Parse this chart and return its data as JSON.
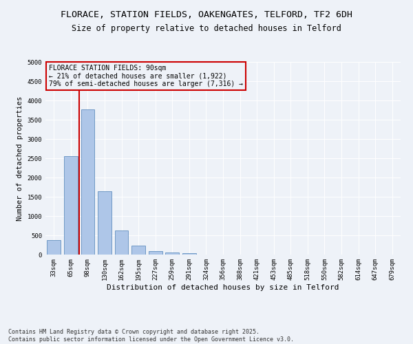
{
  "title_line1": "FLORACE, STATION FIELDS, OAKENGATES, TELFORD, TF2 6DH",
  "title_line2": "Size of property relative to detached houses in Telford",
  "xlabel": "Distribution of detached houses by size in Telford",
  "ylabel": "Number of detached properties",
  "categories": [
    "33sqm",
    "65sqm",
    "98sqm",
    "130sqm",
    "162sqm",
    "195sqm",
    "227sqm",
    "259sqm",
    "291sqm",
    "324sqm",
    "356sqm",
    "388sqm",
    "421sqm",
    "453sqm",
    "485sqm",
    "518sqm",
    "550sqm",
    "582sqm",
    "614sqm",
    "647sqm",
    "679sqm"
  ],
  "values": [
    380,
    2550,
    3760,
    1650,
    620,
    230,
    90,
    45,
    30,
    0,
    0,
    0,
    0,
    0,
    0,
    0,
    0,
    0,
    0,
    0,
    0
  ],
  "bar_color": "#aec6e8",
  "bar_edge_color": "#4a7fb5",
  "vline_color": "#cc0000",
  "vline_x": 1.5,
  "annotation_text": "FLORACE STATION FIELDS: 90sqm\n← 21% of detached houses are smaller (1,922)\n79% of semi-detached houses are larger (7,316) →",
  "annotation_box_color": "#cc0000",
  "ylim": [
    0,
    5000
  ],
  "yticks": [
    0,
    500,
    1000,
    1500,
    2000,
    2500,
    3000,
    3500,
    4000,
    4500,
    5000
  ],
  "background_color": "#eef2f8",
  "grid_color": "#ffffff",
  "footer_text": "Contains HM Land Registry data © Crown copyright and database right 2025.\nContains public sector information licensed under the Open Government Licence v3.0.",
  "title_fontsize": 9.5,
  "subtitle_fontsize": 8.5,
  "xlabel_fontsize": 8,
  "ylabel_fontsize": 7.5,
  "tick_fontsize": 6.5,
  "annotation_fontsize": 7,
  "footer_fontsize": 6
}
